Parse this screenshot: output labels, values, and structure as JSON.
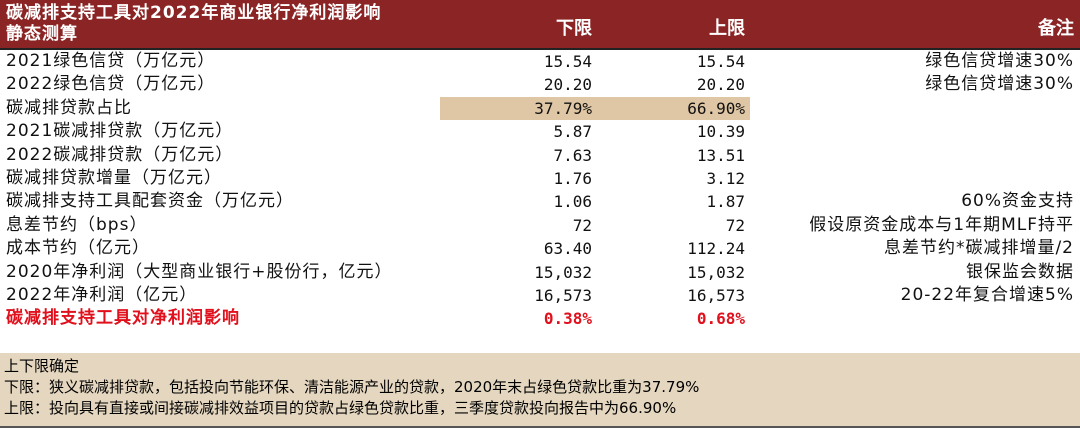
{
  "header": {
    "title": "碳减排支持工具对2022年商业银行净利润影响静态测算",
    "col_lower": "下限",
    "col_upper": "上限",
    "col_note": "备注"
  },
  "rows": [
    {
      "label": "2021绿色信贷（万亿元）",
      "lower": "15.54",
      "upper": "15.54",
      "note": "绿色信贷增速30%"
    },
    {
      "label": "2022绿色信贷（万亿元）",
      "lower": "20.20",
      "upper": "20.20",
      "note": "绿色信贷增速30%"
    },
    {
      "label": "碳减排贷款占比",
      "lower": "37.79%",
      "upper": "66.90%",
      "note": ""
    },
    {
      "label": "2021碳减排贷款（万亿元）",
      "lower": "5.87",
      "upper": "10.39",
      "note": ""
    },
    {
      "label": "2022碳减排贷款（万亿元）",
      "lower": "7.63",
      "upper": "13.51",
      "note": ""
    },
    {
      "label": "碳减排贷款增量（万亿元）",
      "lower": "1.76",
      "upper": "3.12",
      "note": ""
    },
    {
      "label": "碳减排支持工具配套资金（万亿元）",
      "lower": "1.06",
      "upper": "1.87",
      "note": "60%资金支持"
    },
    {
      "label": "息差节约（bps）",
      "lower": "72",
      "upper": "72",
      "note": "假设原资金成本与1年期MLF持平"
    },
    {
      "label": "成本节约（亿元）",
      "lower": "63.40",
      "upper": "112.24",
      "note": "息差节约*碳减排增量/2"
    },
    {
      "label": "2020年净利润（大型商业银行+股份行，亿元）",
      "lower": "15,032",
      "upper": "15,032",
      "note": "银保监会数据"
    },
    {
      "label": "2022年净利润（亿元）",
      "lower": "16,573",
      "upper": "16,573",
      "note": "20-22年复合增速5%"
    },
    {
      "label": "碳减排支持工具对净利润影响",
      "lower": "0.38%",
      "upper": "0.68%",
      "note": ""
    }
  ],
  "notes": {
    "title": "上下限确定",
    "lower": "下限：狭义碳减排贷款，包括投向节能环保、清洁能源产业的贷款，2020年末占绿色贷款比重为37.79%",
    "upper": "上限：投向具有直接或间接碳减排效益项目的贷款占绿色贷款比重，三季度贷款投向报告中为66.90%"
  },
  "colors": {
    "header_bg": "#8b2424",
    "highlight": "#dfc6a4",
    "note_bg": "#e4d6bf",
    "emphasis": "#e0101c"
  }
}
